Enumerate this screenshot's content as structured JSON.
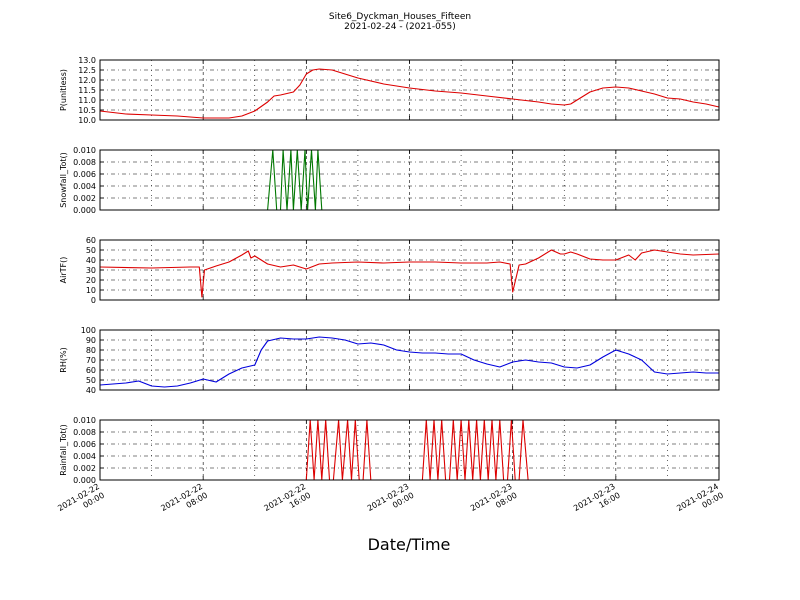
{
  "title_line1": "Site6_Dyckman_Houses_Fifteen",
  "title_line2": "2021-02-24 - (2021-055)",
  "xlabel": "Date/Time",
  "x_ticks": [
    {
      "l1": "2021-02-22",
      "l2": "00:00"
    },
    {
      "l1": "2021-02-22",
      "l2": "08:00"
    },
    {
      "l1": "2021-02-22",
      "l2": "16:00"
    },
    {
      "l1": "2021-02-23",
      "l2": "00:00"
    },
    {
      "l1": "2021-02-23",
      "l2": "08:00"
    },
    {
      "l1": "2021-02-23",
      "l2": "16:00"
    },
    {
      "l1": "2021-02-24",
      "l2": "00:00"
    }
  ],
  "chart_data": [
    {
      "type": "line",
      "ylabel": "P(unitless)",
      "color": "#dd0000",
      "ylim": [
        10.0,
        13.0
      ],
      "yticks": [
        "10.0",
        "10.5",
        "11.0",
        "11.5",
        "12.0",
        "12.5",
        "13.0"
      ],
      "x_hours": [
        0,
        2,
        4,
        6,
        8,
        9,
        10,
        11,
        12,
        13,
        13.5,
        14,
        15,
        15.5,
        16,
        16.5,
        17,
        18,
        19,
        20,
        22,
        24,
        26,
        28,
        30,
        32,
        34,
        35,
        36,
        36.5,
        37,
        38,
        39,
        40,
        41,
        42,
        43,
        44,
        45,
        46,
        47,
        48
      ],
      "y": [
        10.45,
        10.3,
        10.25,
        10.2,
        10.1,
        10.1,
        10.1,
        10.2,
        10.45,
        10.9,
        11.2,
        11.25,
        11.4,
        11.75,
        12.3,
        12.5,
        12.55,
        12.5,
        12.3,
        12.1,
        11.8,
        11.6,
        11.45,
        11.35,
        11.2,
        11.05,
        10.9,
        10.8,
        10.75,
        10.8,
        11.0,
        11.4,
        11.6,
        11.65,
        11.6,
        11.45,
        11.3,
        11.1,
        11.05,
        10.9,
        10.8,
        10.65
      ]
    },
    {
      "type": "line",
      "ylabel": "Snowfall_Tot()",
      "color": "#007700",
      "ylim": [
        0.0,
        0.01
      ],
      "yticks": [
        "0.000",
        "0.002",
        "0.004",
        "0.006",
        "0.008",
        "0.010"
      ],
      "x_hours": [
        0,
        13.0,
        13.4,
        13.7,
        14.0,
        14.2,
        14.5,
        14.8,
        15.0,
        15.3,
        15.6,
        15.9,
        16.1,
        16.4,
        16.7,
        16.9,
        17.2,
        48
      ],
      "y": [
        0,
        0,
        0.01,
        0,
        0,
        0.01,
        0,
        0.01,
        0,
        0.01,
        0,
        0.01,
        0,
        0.01,
        0,
        0.01,
        0,
        0
      ]
    },
    {
      "type": "line",
      "ylabel": "AirTF()",
      "color": "#dd0000",
      "ylim": [
        0,
        60
      ],
      "yticks": [
        "0",
        "10",
        "20",
        "30",
        "40",
        "50",
        "60"
      ],
      "x_hours": [
        0,
        4,
        7,
        7.7,
        7.9,
        8.1,
        9,
        10,
        11,
        11.5,
        11.7,
        12,
        13,
        14,
        15,
        16,
        17,
        18,
        20,
        22,
        24,
        26,
        28,
        30,
        31,
        31.8,
        32,
        32.5,
        33,
        34,
        35,
        35.7,
        36,
        36.5,
        37,
        38,
        39,
        40,
        41,
        41.5,
        42,
        43,
        44,
        45,
        46,
        48
      ],
      "y": [
        33,
        32,
        33,
        33,
        3,
        30,
        34,
        38,
        45,
        49,
        42,
        44,
        36,
        33,
        35,
        31,
        36,
        37,
        38,
        37,
        38,
        38,
        37,
        37,
        38,
        36,
        8,
        35,
        36,
        42,
        50,
        46,
        46,
        48,
        46,
        41,
        40,
        40,
        45,
        40,
        47,
        50,
        48,
        46,
        45,
        46
      ]
    },
    {
      "type": "line",
      "ylabel": "RH(%)",
      "color": "#0000dd",
      "ylim": [
        40,
        100
      ],
      "yticks": [
        "40",
        "50",
        "60",
        "70",
        "80",
        "90",
        "100"
      ],
      "x_hours": [
        0,
        2,
        3,
        4,
        5,
        6,
        7,
        8,
        9,
        10,
        11,
        12,
        12.5,
        13,
        14,
        15,
        16,
        17,
        18,
        19,
        20,
        21,
        22,
        23,
        24,
        25,
        26,
        27,
        28,
        29,
        30,
        31,
        32,
        33,
        34,
        35,
        36,
        37,
        38,
        39,
        40,
        41,
        42,
        43,
        44,
        45,
        46,
        47,
        48
      ],
      "y": [
        45,
        47,
        49,
        44,
        43,
        44,
        47,
        51,
        48,
        56,
        62,
        65,
        80,
        89,
        92,
        91,
        91,
        93,
        92,
        90,
        86,
        87,
        85,
        80,
        78,
        77,
        77,
        76,
        76,
        70,
        66,
        63,
        68,
        70,
        68,
        67,
        63,
        62,
        65,
        73,
        80,
        76,
        70,
        58,
        56,
        57,
        58,
        57,
        57
      ]
    },
    {
      "type": "line",
      "ylabel": "Rainfall_Tot()",
      "color": "#dd0000",
      "ylim": [
        0.0,
        0.01
      ],
      "yticks": [
        "0.000",
        "0.002",
        "0.004",
        "0.006",
        "0.008",
        "0.010"
      ],
      "x_hours": [
        0,
        16.0,
        16.3,
        16.6,
        16.9,
        17.2,
        17.5,
        17.8,
        18.1,
        18.5,
        18.8,
        19.2,
        19.5,
        19.8,
        20.1,
        20.4,
        20.7,
        21,
        22.5,
        25,
        25.3,
        25.6,
        25.9,
        26.2,
        26.5,
        26.8,
        27.1,
        27.4,
        27.7,
        28,
        28.3,
        28.6,
        28.9,
        29.2,
        29.5,
        29.8,
        30.1,
        30.4,
        30.7,
        31.0,
        31.3,
        31.6,
        31.9,
        32.2,
        32.5,
        32.8,
        33.2,
        48
      ],
      "y": [
        0,
        0,
        0.01,
        0,
        0.01,
        0,
        0.01,
        0,
        0,
        0.01,
        0,
        0.01,
        0,
        0.01,
        0,
        0,
        0.01,
        0,
        0,
        0,
        0.01,
        0,
        0.01,
        0,
        0.01,
        0,
        0,
        0.01,
        0,
        0.01,
        0,
        0.01,
        0,
        0.01,
        0,
        0.01,
        0,
        0.01,
        0,
        0.01,
        0,
        0,
        0.01,
        0,
        0,
        0.01,
        0,
        0
      ]
    }
  ]
}
